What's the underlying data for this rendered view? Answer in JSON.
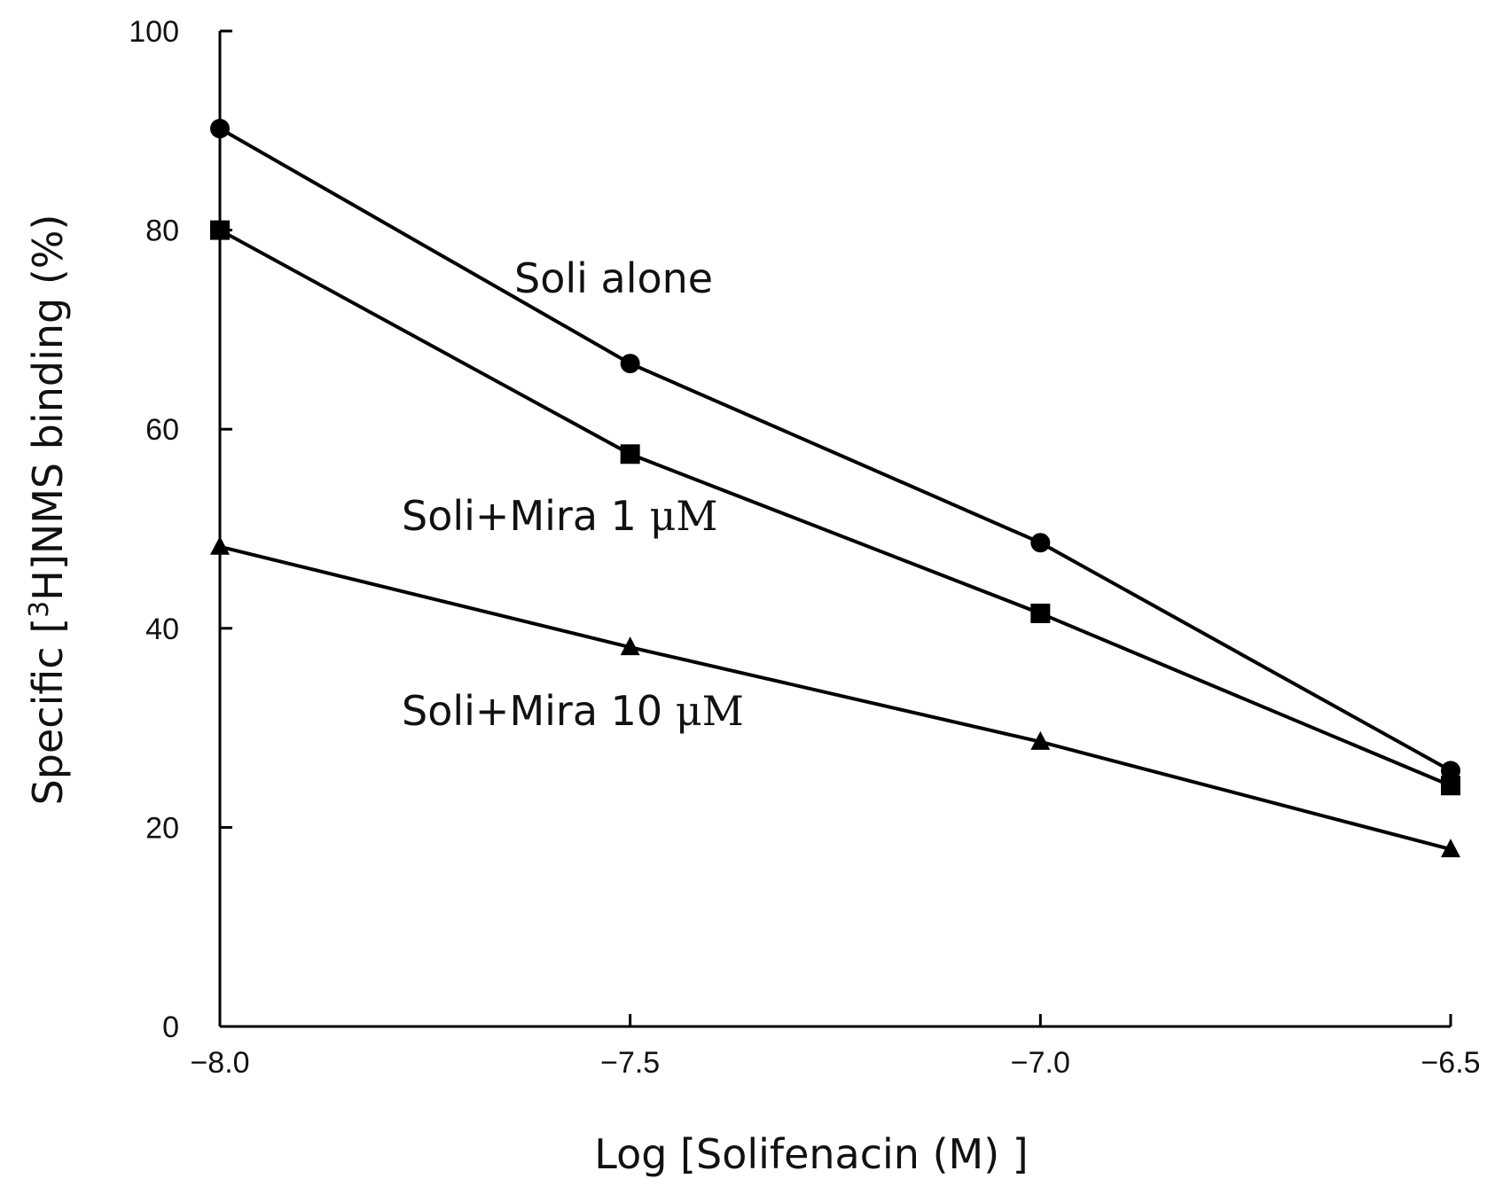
{
  "chart_data": {
    "type": "line",
    "xlabel": "Log [Solifenacin (M) ]",
    "ylabel_parts": {
      "prefix": "Specific [",
      "superscript": "3",
      "suffix": "H]NMS binding (%)"
    },
    "x": [
      -8.0,
      -7.5,
      -7.0,
      -6.5
    ],
    "x_tick_labels": [
      "−8.0",
      "−7.5",
      "−7.0",
      "−6.5"
    ],
    "xlim": [
      -8.0,
      -6.5
    ],
    "y_ticks": [
      0,
      20,
      40,
      60,
      80,
      100
    ],
    "y_tick_labels": [
      "0",
      "20",
      "40",
      "60",
      "80",
      "100"
    ],
    "ylim": [
      0,
      100
    ],
    "grid": false,
    "series": [
      {
        "name_main": "Soli alone",
        "name_unit": "",
        "marker": "circle",
        "values": [
          90.2,
          66.6,
          48.6,
          25.7
        ]
      },
      {
        "name_main": "Soli+Mira 1 ",
        "name_unit": "μM",
        "marker": "square",
        "values": [
          80.0,
          57.5,
          41.5,
          24.2
        ]
      },
      {
        "name_main": "Soli+Mira 10 ",
        "name_unit": "μM",
        "marker": "triangle",
        "values": [
          48.2,
          38.1,
          28.6,
          17.8
        ]
      }
    ]
  }
}
